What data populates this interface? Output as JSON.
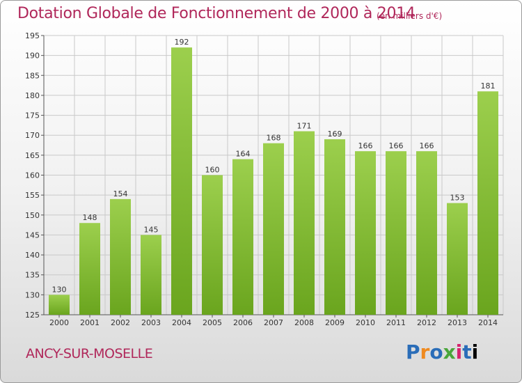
{
  "chart_data": {
    "type": "bar",
    "title": "Dotation Globale de Fonctionnement de 2000 à 2014",
    "subtitle": "(en milliers d'€)",
    "categories": [
      "2000",
      "2001",
      "2002",
      "2003",
      "2004",
      "2005",
      "2006",
      "2007",
      "2008",
      "2009",
      "2010",
      "2011",
      "2012",
      "2013",
      "2014"
    ],
    "values": [
      130,
      148,
      154,
      145,
      192,
      160,
      164,
      168,
      171,
      169,
      166,
      166,
      166,
      153,
      181
    ],
    "ylim": [
      125,
      195
    ],
    "yticks": [
      125,
      130,
      135,
      140,
      145,
      150,
      155,
      160,
      165,
      170,
      175,
      180,
      185,
      190,
      195
    ],
    "grid": true,
    "bar_color": "#8cc63f"
  },
  "commune": "ANCY-SUR-MOSELLE",
  "logo": [
    "P",
    "r",
    "o",
    "x",
    "i",
    "t",
    "i"
  ]
}
